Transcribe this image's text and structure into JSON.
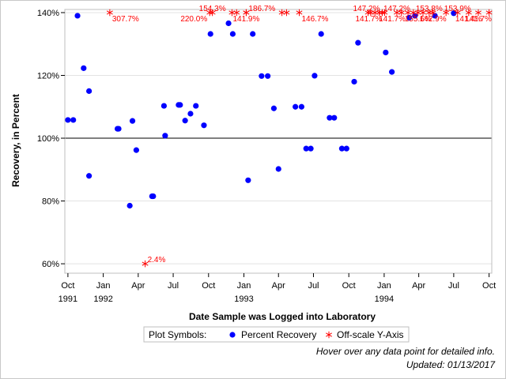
{
  "chart_data": {
    "type": "scatter",
    "xlabel": "Date Sample was Logged into Laboratory",
    "ylabel": "Recovery, in Percent",
    "ylim": [
      57,
      141
    ],
    "xlim": [
      "1991-09-23",
      "1994-10-08"
    ],
    "reference_line": 100,
    "y_ticks": [
      {
        "value": 60,
        "label": "60%"
      },
      {
        "value": 80,
        "label": "80%"
      },
      {
        "value": 100,
        "label": "100%"
      },
      {
        "value": 120,
        "label": "120%"
      },
      {
        "value": 140,
        "label": "140%"
      }
    ],
    "x_ticks": [
      {
        "date": "1991-10-01",
        "label": "Oct",
        "year": "1991"
      },
      {
        "date": "1992-01-01",
        "label": "Jan",
        "year": "1992"
      },
      {
        "date": "1992-04-01",
        "label": "Apr",
        "year": ""
      },
      {
        "date": "1992-07-01",
        "label": "Jul",
        "year": ""
      },
      {
        "date": "1992-10-01",
        "label": "Oct",
        "year": ""
      },
      {
        "date": "1993-01-01",
        "label": "Jan",
        "year": "1993"
      },
      {
        "date": "1993-04-01",
        "label": "Apr",
        "year": ""
      },
      {
        "date": "1993-07-01",
        "label": "Jul",
        "year": ""
      },
      {
        "date": "1993-10-01",
        "label": "Oct",
        "year": ""
      },
      {
        "date": "1994-01-01",
        "label": "Jan",
        "year": "1994"
      },
      {
        "date": "1994-04-01",
        "label": "Apr",
        "year": ""
      },
      {
        "date": "1994-07-01",
        "label": "Jul",
        "year": ""
      },
      {
        "date": "1994-10-01",
        "label": "Oct",
        "year": ""
      }
    ],
    "series": [
      {
        "name": "Percent Recovery",
        "color": "#0000ff",
        "marker": "dot",
        "points": [
          {
            "x": "1991-10-01",
            "y": 105.8
          },
          {
            "x": "1991-10-15",
            "y": 105.8
          },
          {
            "x": "1991-10-26",
            "y": 139.0
          },
          {
            "x": "1991-11-11",
            "y": 122.3
          },
          {
            "x": "1991-11-25",
            "y": 115.0
          },
          {
            "x": "1991-11-25",
            "y": 88.0
          },
          {
            "x": "1992-02-07",
            "y": 103.0
          },
          {
            "x": "1992-02-10",
            "y": 103.0
          },
          {
            "x": "1992-03-10",
            "y": 78.5
          },
          {
            "x": "1992-03-17",
            "y": 105.5
          },
          {
            "x": "1992-03-27",
            "y": 96.2
          },
          {
            "x": "1992-05-07",
            "y": 81.5
          },
          {
            "x": "1992-05-10",
            "y": 81.5
          },
          {
            "x": "1992-06-07",
            "y": 110.3
          },
          {
            "x": "1992-06-10",
            "y": 100.8
          },
          {
            "x": "1992-07-15",
            "y": 110.6
          },
          {
            "x": "1992-07-19",
            "y": 110.6
          },
          {
            "x": "1992-08-01",
            "y": 105.6
          },
          {
            "x": "1992-08-15",
            "y": 107.8
          },
          {
            "x": "1992-08-29",
            "y": 110.3
          },
          {
            "x": "1992-09-19",
            "y": 104.1
          },
          {
            "x": "1992-10-06",
            "y": 133.2
          },
          {
            "x": "1992-11-22",
            "y": 136.6
          },
          {
            "x": "1992-12-03",
            "y": 133.2
          },
          {
            "x": "1993-01-12",
            "y": 86.6
          },
          {
            "x": "1993-01-24",
            "y": 133.2
          },
          {
            "x": "1993-02-16",
            "y": 119.8
          },
          {
            "x": "1993-03-04",
            "y": 119.8
          },
          {
            "x": "1993-03-20",
            "y": 109.5
          },
          {
            "x": "1993-04-01",
            "y": 90.2
          },
          {
            "x": "1993-05-15",
            "y": 110.0
          },
          {
            "x": "1993-05-31",
            "y": 110.0
          },
          {
            "x": "1993-06-12",
            "y": 96.7
          },
          {
            "x": "1993-06-24",
            "y": 96.7
          },
          {
            "x": "1993-07-04",
            "y": 119.9
          },
          {
            "x": "1993-07-21",
            "y": 133.2
          },
          {
            "x": "1993-08-12",
            "y": 106.5
          },
          {
            "x": "1993-08-24",
            "y": 106.5
          },
          {
            "x": "1993-09-13",
            "y": 96.7
          },
          {
            "x": "1993-09-25",
            "y": 96.7
          },
          {
            "x": "1993-10-15",
            "y": 118.0
          },
          {
            "x": "1993-10-25",
            "y": 130.4
          },
          {
            "x": "1994-01-05",
            "y": 127.3
          },
          {
            "x": "1994-01-21",
            "y": 121.1
          },
          {
            "x": "1994-03-07",
            "y": 138.4
          },
          {
            "x": "1994-03-22",
            "y": 139.0
          },
          {
            "x": "1994-05-13",
            "y": 139.0
          },
          {
            "x": "1994-07-01",
            "y": 139.8
          }
        ]
      },
      {
        "name": "Off-scale Y-Axis",
        "color": "#ff0000",
        "marker": "asterisk",
        "points": [
          {
            "x": "1992-01-18",
            "y": 140,
            "label": "307.7%",
            "label_anchor": "right-below"
          },
          {
            "x": "1992-04-19",
            "y": 60,
            "label": "2.4%",
            "label_anchor": "right-above"
          },
          {
            "x": "1992-10-11",
            "y": 140,
            "label": "154.3%",
            "label_anchor": "above"
          },
          {
            "x": "1992-10-04",
            "y": 140,
            "label": "220.0%",
            "label_anchor": "left-below"
          },
          {
            "x": "1992-12-01",
            "y": 140,
            "label": "",
            "label_anchor": "none"
          },
          {
            "x": "1992-12-13",
            "y": 140,
            "label": "",
            "label_anchor": "none"
          },
          {
            "x": "1993-01-07",
            "y": 140,
            "label": "186.7%",
            "label_anchor": "right-above"
          },
          {
            "x": "1993-01-07",
            "y": 140,
            "label": "141.9%",
            "label_anchor": "below"
          },
          {
            "x": "1993-04-10",
            "y": 140,
            "label": "",
            "label_anchor": "none"
          },
          {
            "x": "1993-04-22",
            "y": 140,
            "label": "",
            "label_anchor": "none"
          },
          {
            "x": "1993-05-25",
            "y": 140,
            "label": "146.7%",
            "label_anchor": "right-below"
          },
          {
            "x": "1993-11-20",
            "y": 140,
            "label": "",
            "label_anchor": "none"
          },
          {
            "x": "1993-11-27",
            "y": 140,
            "label": "",
            "label_anchor": "none"
          },
          {
            "x": "1993-12-08",
            "y": 140,
            "label": "",
            "label_anchor": "none"
          },
          {
            "x": "1993-12-19",
            "y": 140,
            "label": "",
            "label_anchor": "none"
          },
          {
            "x": "1993-12-27",
            "y": 140,
            "label": "147.2%",
            "label_anchor": "left-above"
          },
          {
            "x": "1994-01-02",
            "y": 140,
            "label": "141.7%",
            "label_anchor": "left-below"
          },
          {
            "x": "1994-02-03",
            "y": 140,
            "label": "147.2%",
            "label_anchor": "above"
          },
          {
            "x": "1994-02-15",
            "y": 140,
            "label": "",
            "label_anchor": "none"
          },
          {
            "x": "1994-03-04",
            "y": 140,
            "label": "141.7%",
            "label_anchor": "left-below"
          },
          {
            "x": "1994-03-18",
            "y": 140,
            "label": "",
            "label_anchor": "none"
          },
          {
            "x": "1994-03-30",
            "y": 140,
            "label": "155.6%",
            "label_anchor": "below"
          },
          {
            "x": "1994-04-12",
            "y": 140,
            "label": "",
            "label_anchor": "none"
          },
          {
            "x": "1994-04-28",
            "y": 140,
            "label": "153.8%",
            "label_anchor": "above"
          },
          {
            "x": "1994-05-08",
            "y": 140,
            "label": "142.9%",
            "label_anchor": "below"
          },
          {
            "x": "1994-06-11",
            "y": 140,
            "label": "",
            "label_anchor": "none"
          },
          {
            "x": "1994-07-11",
            "y": 140,
            "label": "153.9%",
            "label_anchor": "above"
          },
          {
            "x": "1994-08-09",
            "y": 140,
            "label": "141.4%",
            "label_anchor": "below"
          },
          {
            "x": "1994-09-03",
            "y": 140,
            "label": "141.7%",
            "label_anchor": "below"
          },
          {
            "x": "1994-10-01",
            "y": 140,
            "label": "",
            "label_anchor": "none"
          }
        ]
      }
    ],
    "legend": {
      "title": "Plot Symbols:",
      "position": "bottom-center",
      "entries": [
        "Percent Recovery",
        "Off-scale Y-Axis"
      ]
    }
  },
  "footnotes": {
    "hover_hint": "Hover over any data point for detailed info.",
    "updated": "Updated: 01/13/2017"
  }
}
